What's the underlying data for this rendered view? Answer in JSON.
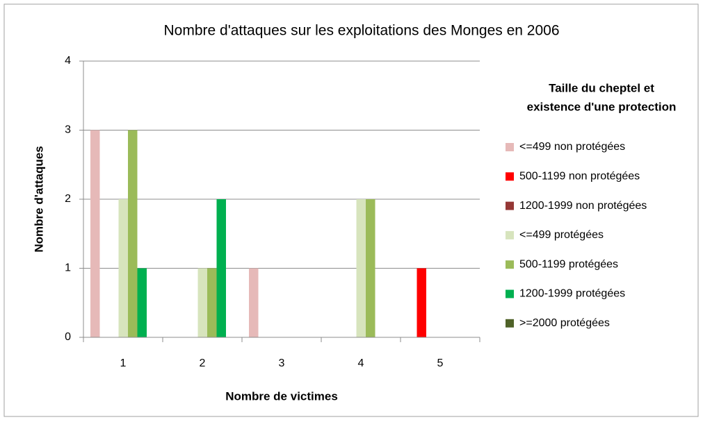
{
  "chart_data": {
    "type": "bar",
    "title": "Nombre d'attaques sur les exploitations des Monges en 2006",
    "x_label": "Nombre de victimes",
    "y_label": "Nombre d'attaques",
    "legend_title": [
      "Taille du cheptel et",
      "existence d'une protection"
    ],
    "categories": [
      "1",
      "2",
      "3",
      "4",
      "5"
    ],
    "series": [
      {
        "name": "<=499 non protégées",
        "color": "#e6b9b8",
        "values": [
          3,
          0,
          1,
          0,
          0
        ]
      },
      {
        "name": "500-1199 non protégées",
        "color": "#ff0000",
        "values": [
          0,
          0,
          0,
          0,
          1
        ]
      },
      {
        "name": "1200-1999 non protégées",
        "color": "#953735",
        "values": [
          0,
          0,
          0,
          0,
          0
        ]
      },
      {
        "name": "<=499 protégées",
        "color": "#d7e4bd",
        "values": [
          2,
          1,
          0,
          2,
          0
        ]
      },
      {
        "name": "500-1199 protégées",
        "color": "#9bbb59",
        "values": [
          3,
          1,
          0,
          2,
          0
        ]
      },
      {
        "name": "1200-1999 protégées",
        "color": "#00b050",
        "values": [
          1,
          2,
          0,
          0,
          0
        ]
      },
      {
        "name": ">=2000 protégées",
        "color": "#4f6228",
        "values": [
          0,
          0,
          0,
          0,
          0
        ]
      }
    ],
    "ylim": [
      0,
      4
    ],
    "yticks": [
      0,
      1,
      2,
      3,
      4
    ],
    "grid": true,
    "legend": "right"
  }
}
